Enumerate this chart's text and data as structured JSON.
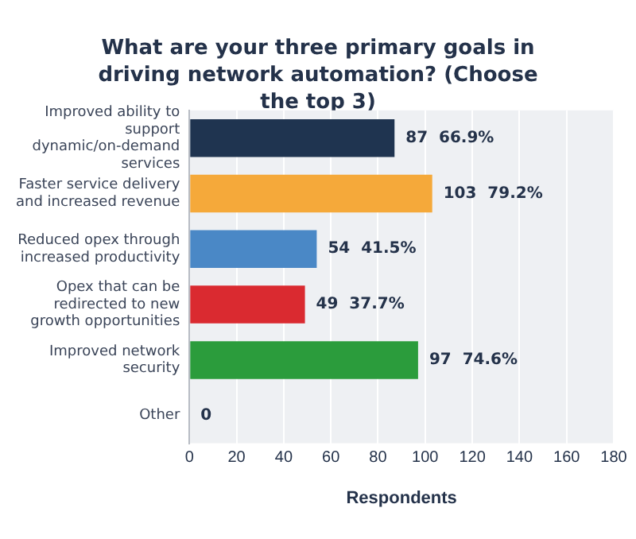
{
  "chart_data": {
    "type": "bar",
    "orientation": "horizontal",
    "title": "What are your three primary goals in driving network automation? (Choose the top 3)",
    "xlabel": "Respondents",
    "categories": [
      "Improved ability to support dynamic/on-demand services",
      "Faster service delivery and increased revenue",
      "Reduced opex through increased productivity",
      "Opex that can be redirected to new growth opportunities",
      "Improved network security",
      "Other"
    ],
    "values": [
      87,
      103,
      54,
      49,
      97,
      0
    ],
    "colors": [
      "#1f3450",
      "#f5a93a",
      "#4a88c6",
      "#da2a30",
      "#2b9c3c",
      "#2b9c3c"
    ],
    "value_labels": [
      "87  66.9%",
      "103  79.2%",
      "54  41.5%",
      "49  37.7%",
      "97  74.6%",
      "0"
    ],
    "xlim": [
      0,
      180
    ],
    "xticks": [
      0,
      20,
      40,
      60,
      80,
      100,
      120,
      140,
      160,
      180
    ],
    "grid": "x",
    "legend": false
  }
}
